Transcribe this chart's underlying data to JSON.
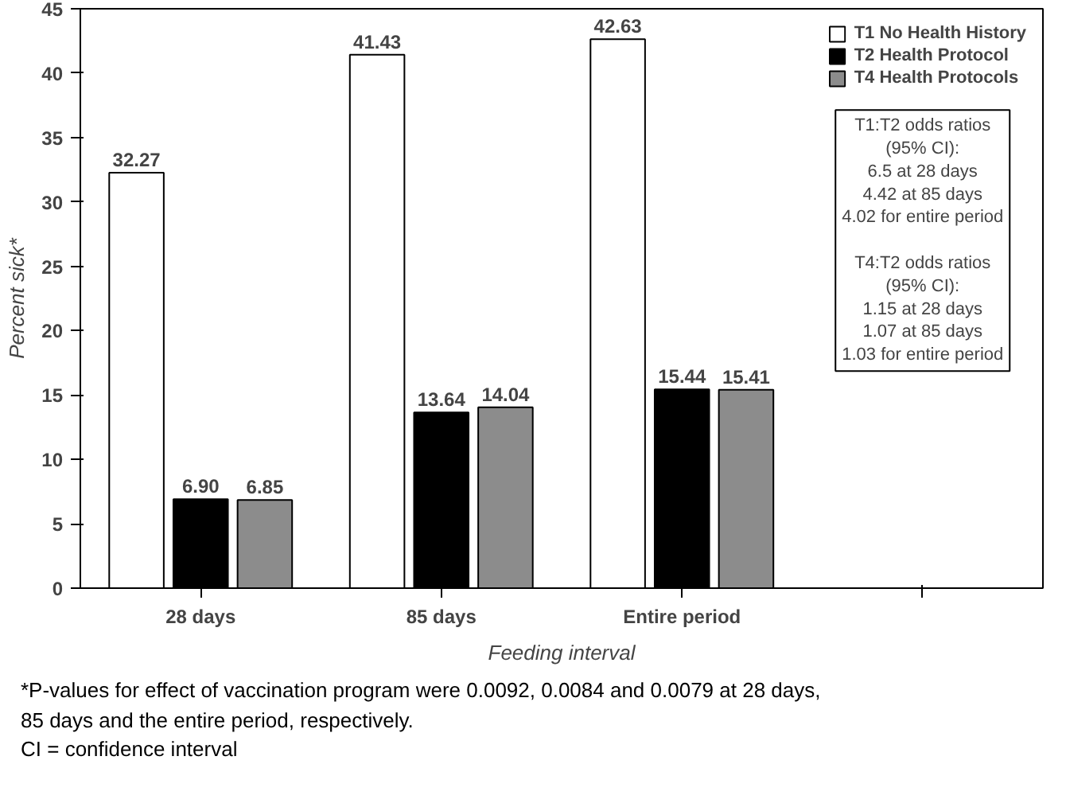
{
  "chart_data": {
    "type": "bar",
    "xlabel": "Feeding interval",
    "ylabel": "Percent sick*",
    "categories": [
      "28 days",
      "85 days",
      "Entire period",
      null
    ],
    "series": [
      {
        "name": "T1 No Health History",
        "color": "#ffffff",
        "values": [
          32.27,
          41.43,
          42.63,
          null
        ],
        "value_labels": [
          "32.27",
          "41.43",
          "42.63",
          null
        ]
      },
      {
        "name": "T2 Health Protocol",
        "color": "#000000",
        "values": [
          6.9,
          13.64,
          15.44,
          null
        ],
        "value_labels": [
          "6.90",
          "13.64",
          "15.44",
          null
        ]
      },
      {
        "name": "T4 Health Protocols",
        "color": "#8c8c8c",
        "values": [
          6.85,
          14.04,
          15.41,
          null
        ],
        "value_labels": [
          "6.85",
          "14.04",
          "15.41",
          null
        ]
      }
    ],
    "ylim": [
      0,
      45
    ],
    "yticks": [
      0,
      5,
      10,
      15,
      20,
      25,
      30,
      35,
      40,
      45
    ],
    "grid": false,
    "legend": "top right",
    "annotations": [
      "T1:T2 odds ratios\n(95% CI):\n6.5 at 28 days\n4.42 at 85 days\n4.02 for entire period\n\nT4:T2 odds ratios\n(95% CI):\n1.15 at 28 days\n1.07 at 85 days\n1.03 for entire period",
      "*P-values for effect of vaccination program were 0.0092, 0.0084 and 0.0079 at 28 days,",
      "85 days and the entire period, respectively.",
      "CI = confidence interval"
    ]
  }
}
